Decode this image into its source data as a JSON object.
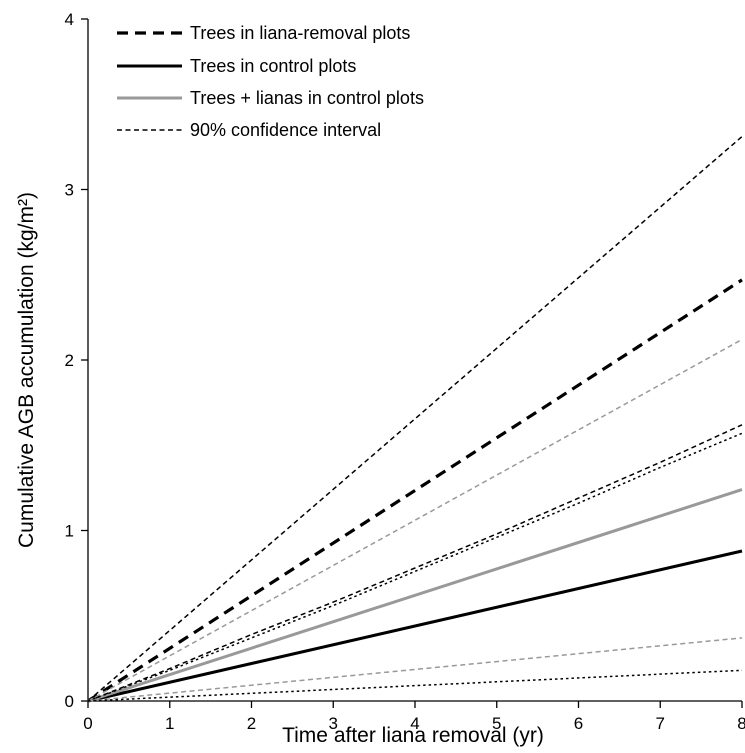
{
  "chart_data": {
    "type": "line",
    "xlabel": "Time after liana removal (yr)",
    "ylabel": "Cumulative AGB accumulation (kg/m²)",
    "xlim": [
      0,
      8
    ],
    "ylim": [
      0,
      4
    ],
    "x_ticks": [
      "0",
      "1",
      "2",
      "3",
      "4",
      "5",
      "6",
      "7",
      "8"
    ],
    "y_ticks": [
      "0",
      "1",
      "2",
      "3",
      "4"
    ],
    "grid": false,
    "legend_position": "top-left",
    "legend": [
      {
        "label": "Trees in liana-removal plots",
        "style": "dashed-thick",
        "color": "#000000"
      },
      {
        "label": "Trees in control plots",
        "style": "solid",
        "color": "#000000"
      },
      {
        "label": "Trees + lianas in control plots",
        "style": "solid",
        "color": "#999999"
      },
      {
        "label": "90% confidence interval",
        "style": "dashed-thin",
        "color": "#000000"
      }
    ],
    "series": [
      {
        "name": "Trees in liana-removal plots",
        "style": "dashed-thick",
        "color": "#000000",
        "x": [
          0,
          8
        ],
        "y": [
          0,
          2.47
        ]
      },
      {
        "name": "Trees in control plots",
        "style": "solid",
        "color": "#000000",
        "x": [
          0,
          8
        ],
        "y": [
          0,
          0.88
        ]
      },
      {
        "name": "Trees + lianas in control plots",
        "style": "solid",
        "color": "#999999",
        "x": [
          0,
          8
        ],
        "y": [
          0,
          1.24
        ]
      },
      {
        "style": "dashed-thin",
        "color": "#000000",
        "x": [
          0,
          8
        ],
        "y": [
          0,
          3.31
        ]
      },
      {
        "style": "dashed-thin",
        "color": "#000000",
        "x": [
          0,
          1,
          2,
          3,
          4,
          5,
          6,
          7,
          8
        ],
        "y": [
          0,
          0.19,
          0.39,
          0.58,
          0.78,
          0.98,
          1.19,
          1.4,
          1.62
        ]
      },
      {
        "style": "dashed-thin",
        "color": "#999999",
        "x": [
          0,
          8
        ],
        "y": [
          0,
          2.12
        ]
      },
      {
        "style": "dashed-thin",
        "color": "#999999",
        "x": [
          0,
          8
        ],
        "y": [
          0,
          0.37
        ]
      },
      {
        "style": "dotted",
        "color": "#000000",
        "x": [
          0,
          1,
          2,
          3,
          4,
          5,
          6,
          7,
          8
        ],
        "y": [
          0,
          0.18,
          0.37,
          0.56,
          0.76,
          0.96,
          1.16,
          1.37,
          1.57
        ]
      },
      {
        "style": "dotted",
        "color": "#000000",
        "x": [
          0,
          8
        ],
        "y": [
          0,
          0.18
        ]
      }
    ]
  }
}
